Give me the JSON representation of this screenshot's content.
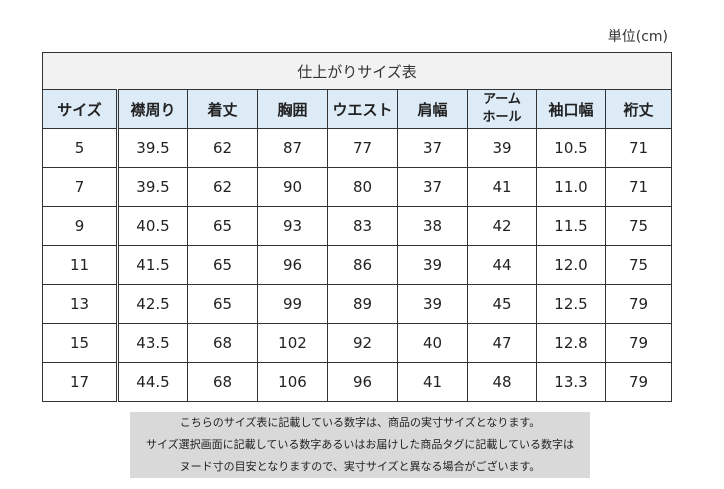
{
  "unit_label": "単位(cm)",
  "table": {
    "title": "仕上がりサイズ表",
    "headers": [
      "サイズ",
      "襟周り",
      "着丈",
      "胸囲",
      "ウエスト",
      "肩幅",
      "アーム\nホール",
      "袖口幅",
      "裄丈"
    ],
    "rows": [
      [
        "5",
        "39.5",
        "62",
        "87",
        "77",
        "37",
        "39",
        "10.5",
        "71"
      ],
      [
        "7",
        "39.5",
        "62",
        "90",
        "80",
        "37",
        "41",
        "11.0",
        "71"
      ],
      [
        "9",
        "40.5",
        "65",
        "93",
        "83",
        "38",
        "42",
        "11.5",
        "75"
      ],
      [
        "11",
        "41.5",
        "65",
        "96",
        "86",
        "39",
        "44",
        "12.0",
        "75"
      ],
      [
        "13",
        "42.5",
        "65",
        "99",
        "89",
        "39",
        "45",
        "12.5",
        "79"
      ],
      [
        "15",
        "43.5",
        "68",
        "102",
        "92",
        "40",
        "47",
        "12.8",
        "79"
      ],
      [
        "17",
        "44.5",
        "68",
        "106",
        "96",
        "41",
        "48",
        "13.3",
        "79"
      ]
    ]
  },
  "note": [
    "こちらのサイズ表に記載している数字は、商品の実寸サイズとなります。",
    "サイズ選択画面に記載している数字あるいはお届けした商品タグに記載している数字は",
    "ヌード寸の目安となりますので、実寸サイズと異なる場合がございます。"
  ]
}
